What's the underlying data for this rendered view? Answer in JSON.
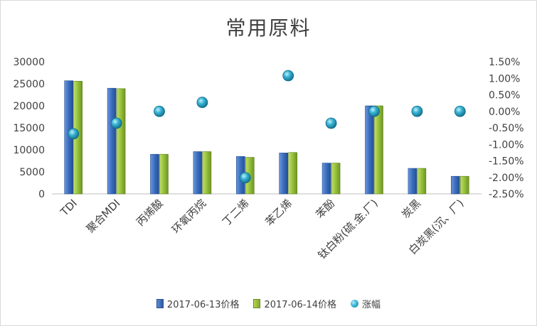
{
  "chart_data": {
    "type": "bar",
    "title": "常用原料",
    "categories": [
      "TDI",
      "聚合MDI",
      "丙烯酸",
      "环氧丙烷",
      "丁二烯",
      "苯乙烯",
      "苯酚",
      "钛白粉(硫.金.厂)",
      "炭黑",
      "白炭黑(沉、厂)"
    ],
    "series": [
      {
        "name": "2017-06-13价格",
        "values": [
          25700,
          24000,
          9000,
          9600,
          8500,
          9300,
          7000,
          20000,
          5800,
          4000
        ],
        "color": "#2f5fad"
      },
      {
        "name": "2017-06-14价格",
        "values": [
          25600,
          23900,
          9000,
          9600,
          8300,
          9400,
          7000,
          20000,
          5800,
          4000
        ],
        "color": "#8ab533"
      },
      {
        "name": "涨幅",
        "type": "scatter",
        "axis": "right",
        "values": [
          -0.0068,
          -0.0036,
          0.0,
          0.0027,
          -0.0201,
          0.0108,
          -0.0036,
          0.0,
          0.0,
          0.0
        ],
        "color": "#2aa9c9"
      }
    ],
    "y_left": {
      "min": 0,
      "max": 30000,
      "ticks": [
        "0",
        "5000",
        "10000",
        "15000",
        "20000",
        "25000",
        "30000"
      ]
    },
    "y_right": {
      "min": -0.025,
      "max": 0.015,
      "ticks": [
        "-2.50%",
        "-2.00%",
        "-1.50%",
        "-1.00%",
        "-0.50%",
        "0.00%",
        "0.50%",
        "1.00%",
        "1.50%"
      ]
    },
    "grid": false,
    "legend_position": "bottom"
  }
}
